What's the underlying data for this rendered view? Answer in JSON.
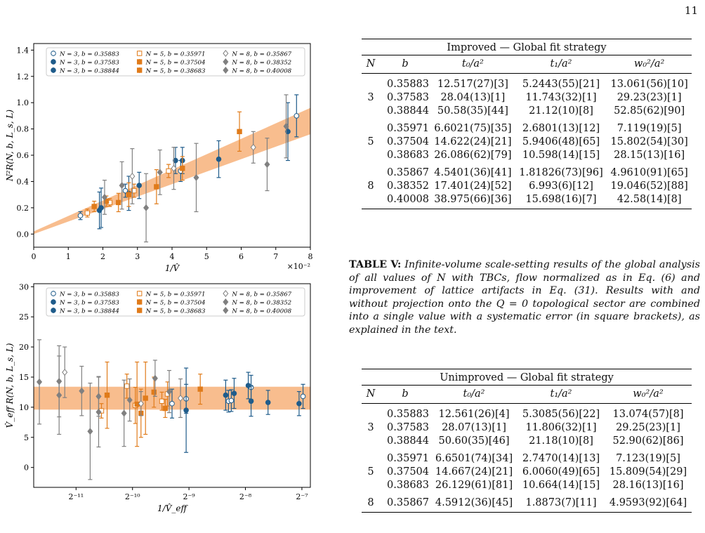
{
  "page_number": "11",
  "plot_colors": {
    "n3": "#1f5c8b",
    "n5": "#e07b1a",
    "n8": "#808080",
    "band": "#f7b27a"
  },
  "legend": [
    {
      "label": "N = 3, b = 0.35883",
      "group": "n3",
      "marker": "o",
      "filled": false
    },
    {
      "label": "N = 5, b = 0.35971",
      "group": "n5",
      "marker": "s",
      "filled": false
    },
    {
      "label": "N = 8, b = 0.35867",
      "group": "n8",
      "marker": "d",
      "filled": false
    },
    {
      "label": "N = 3, b = 0.37583",
      "group": "n3",
      "marker": "o",
      "filled": true
    },
    {
      "label": "N = 5, b = 0.37504",
      "group": "n5",
      "marker": "s",
      "filled": true
    },
    {
      "label": "N = 8, b = 0.38352",
      "group": "n8",
      "marker": "d",
      "filled": true
    },
    {
      "label": "N = 3, b = 0.38844",
      "group": "n3",
      "marker": "o",
      "filled": true
    },
    {
      "label": "N = 5, b = 0.38683",
      "group": "n5",
      "marker": "s",
      "filled": true
    },
    {
      "label": "N = 8, b = 0.40008",
      "group": "n8",
      "marker": "d",
      "filled": true
    }
  ],
  "chart_data": [
    {
      "type": "scatter",
      "xlabel": "1/V̂",
      "ylabel": "N²R(N, b, L_s, L)",
      "x_multiplier": "×10⁻²",
      "xlim": [
        0,
        8
      ],
      "ylim": [
        -0.1,
        1.45
      ],
      "xticks": [
        "0",
        "1",
        "2",
        "3",
        "4",
        "5",
        "6",
        "7",
        "8"
      ],
      "yticks": [
        "0.0",
        "0.2",
        "0.4",
        "0.6",
        "0.8",
        "1.0",
        "1.2",
        "1.4"
      ],
      "band": {
        "x": [
          0,
          8
        ],
        "lower": [
          0.0,
          0.76
        ],
        "upper": [
          0.02,
          0.96
        ]
      },
      "points": [
        {
          "g": "n3",
          "f": false,
          "x": 1.35,
          "y": 0.14,
          "e": 0.03
        },
        {
          "g": "n3",
          "f": false,
          "x": 2.65,
          "y": 0.33,
          "e": 0.05
        },
        {
          "g": "n3",
          "f": false,
          "x": 4.25,
          "y": 0.48,
          "e": 0.08
        },
        {
          "g": "n3",
          "f": false,
          "x": 7.6,
          "y": 0.9,
          "e": 0.16
        },
        {
          "g": "n3",
          "f": true,
          "x": 1.95,
          "y": 0.2,
          "e": 0.15
        },
        {
          "g": "n3",
          "f": true,
          "x": 3.05,
          "y": 0.37,
          "e": 0.1
        },
        {
          "g": "n3",
          "f": true,
          "x": 4.1,
          "y": 0.56,
          "e": 0.1
        },
        {
          "g": "n3",
          "f": true,
          "x": 7.35,
          "y": 0.78,
          "e": 0.22
        },
        {
          "g": "n3",
          "f": true,
          "x": 1.9,
          "y": 0.18,
          "e": 0.14
        },
        {
          "g": "n3",
          "f": true,
          "x": 2.75,
          "y": 0.31,
          "e": 0.13
        },
        {
          "g": "n3",
          "f": true,
          "x": 4.3,
          "y": 0.56,
          "e": 0.1
        },
        {
          "g": "n3",
          "f": true,
          "x": 5.35,
          "y": 0.57,
          "e": 0.14
        },
        {
          "g": "n5",
          "f": false,
          "x": 1.55,
          "y": 0.16,
          "e": 0.03
        },
        {
          "g": "n5",
          "f": false,
          "x": 2.2,
          "y": 0.24,
          "e": 0.03
        },
        {
          "g": "n5",
          "f": false,
          "x": 2.9,
          "y": 0.33,
          "e": 0.05
        },
        {
          "g": "n5",
          "f": false,
          "x": 3.9,
          "y": 0.48,
          "e": 0.05
        },
        {
          "g": "n5",
          "f": true,
          "x": 1.75,
          "y": 0.21,
          "e": 0.04
        },
        {
          "g": "n5",
          "f": true,
          "x": 2.45,
          "y": 0.24,
          "e": 0.07
        },
        {
          "g": "n5",
          "f": true,
          "x": 3.55,
          "y": 0.36,
          "e": 0.13
        },
        {
          "g": "n5",
          "f": true,
          "x": 5.95,
          "y": 0.78,
          "e": 0.15
        },
        {
          "g": "n5",
          "f": true,
          "x": 2.1,
          "y": 0.25,
          "e": 0.04
        },
        {
          "g": "n5",
          "f": true,
          "x": 2.75,
          "y": 0.3,
          "e": 0.09
        },
        {
          "g": "n5",
          "f": true,
          "x": 4.3,
          "y": 0.5,
          "e": 0.09
        },
        {
          "g": "n8",
          "f": false,
          "x": 2.85,
          "y": 0.44,
          "e": 0.21
        },
        {
          "g": "n8",
          "f": false,
          "x": 4.05,
          "y": 0.5,
          "e": 0.16
        },
        {
          "g": "n8",
          "f": false,
          "x": 6.35,
          "y": 0.66,
          "e": 0.12
        },
        {
          "g": "n8",
          "f": true,
          "x": 2.05,
          "y": 0.28,
          "e": 0.13
        },
        {
          "g": "n8",
          "f": true,
          "x": 3.25,
          "y": 0.2,
          "e": 0.26
        },
        {
          "g": "n8",
          "f": true,
          "x": 4.7,
          "y": 0.43,
          "e": 0.26
        },
        {
          "g": "n8",
          "f": true,
          "x": 6.75,
          "y": 0.53,
          "e": 0.2
        },
        {
          "g": "n8",
          "f": true,
          "x": 2.55,
          "y": 0.37,
          "e": 0.18
        },
        {
          "g": "n8",
          "f": true,
          "x": 3.65,
          "y": 0.47,
          "e": 0.17
        },
        {
          "g": "n8",
          "f": true,
          "x": 7.3,
          "y": 0.82,
          "e": 0.24
        }
      ]
    },
    {
      "type": "scatter",
      "xlabel": "1/V̂_eff",
      "ylabel": "V̂_eff R(N, b, L_s, L)",
      "x_scale": "log2",
      "xlim": [
        -11.75,
        -6.85
      ],
      "ylim": [
        -3.3,
        30.5
      ],
      "xticks": [
        {
          "v": -11,
          "label": "2⁻¹¹"
        },
        {
          "v": -10,
          "label": "2⁻¹⁰"
        },
        {
          "v": -9,
          "label": "2⁻⁹"
        },
        {
          "v": -8,
          "label": "2⁻⁸"
        },
        {
          "v": -7,
          "label": "2⁻⁷"
        }
      ],
      "yticks": [
        "0",
        "5",
        "10",
        "15",
        "20",
        "25",
        "30"
      ],
      "band": {
        "lower": 9.6,
        "upper": 13.4
      },
      "points": [
        {
          "g": "n3",
          "f": false,
          "x": -9.3,
          "y": 10.6,
          "e": 2.4
        },
        {
          "g": "n3",
          "f": false,
          "x": -9.05,
          "y": 11.4,
          "e": 2.4
        },
        {
          "g": "n3",
          "f": false,
          "x": -8.3,
          "y": 11.0,
          "e": 1.8
        },
        {
          "g": "n3",
          "f": false,
          "x": -8.25,
          "y": 11.1,
          "e": 1.8
        },
        {
          "g": "n3",
          "f": false,
          "x": -7.9,
          "y": 13.3,
          "e": 2.0
        },
        {
          "g": "n3",
          "f": false,
          "x": -6.98,
          "y": 11.8,
          "e": 2.0
        },
        {
          "g": "n3",
          "f": true,
          "x": -9.05,
          "y": 9.5,
          "e": 7.0
        },
        {
          "g": "n3",
          "f": true,
          "x": -8.35,
          "y": 12.0,
          "e": 2.5
        },
        {
          "g": "n3",
          "f": true,
          "x": -8.2,
          "y": 12.3,
          "e": 2.5
        },
        {
          "g": "n3",
          "f": true,
          "x": -7.9,
          "y": 11.0,
          "e": 2.5
        },
        {
          "g": "n3",
          "f": true,
          "x": -7.95,
          "y": 13.6,
          "e": 2.2
        },
        {
          "g": "n3",
          "f": true,
          "x": -7.6,
          "y": 10.8,
          "e": 2.0
        },
        {
          "g": "n3",
          "f": true,
          "x": -7.05,
          "y": 10.6,
          "e": 2.0
        },
        {
          "g": "n5",
          "f": false,
          "x": -10.55,
          "y": 9.4,
          "e": 1.2
        },
        {
          "g": "n5",
          "f": false,
          "x": -10.1,
          "y": 13.5,
          "e": 2.0
        },
        {
          "g": "n5",
          "f": false,
          "x": -9.95,
          "y": 10.3,
          "e": 3.0
        },
        {
          "g": "n5",
          "f": false,
          "x": -9.48,
          "y": 11.0,
          "e": 1.5
        },
        {
          "g": "n5",
          "f": false,
          "x": -9.38,
          "y": 12.2,
          "e": 2.0
        },
        {
          "g": "n5",
          "f": true,
          "x": -10.45,
          "y": 12.0,
          "e": 5.5
        },
        {
          "g": "n5",
          "f": true,
          "x": -9.92,
          "y": 10.5,
          "e": 7.0
        },
        {
          "g": "n5",
          "f": true,
          "x": -9.77,
          "y": 11.5,
          "e": 6.0
        },
        {
          "g": "n5",
          "f": true,
          "x": -9.85,
          "y": 9.0,
          "e": 4.0
        },
        {
          "g": "n5",
          "f": true,
          "x": -9.62,
          "y": 12.5,
          "e": 2.5
        },
        {
          "g": "n5",
          "f": true,
          "x": -9.42,
          "y": 9.8,
          "e": 1.5
        },
        {
          "g": "n5",
          "f": true,
          "x": -8.8,
          "y": 13.0,
          "e": 2.5
        },
        {
          "g": "n8",
          "f": false,
          "x": -11.2,
          "y": 15.8,
          "e": 4.2
        },
        {
          "g": "n8",
          "f": false,
          "x": -9.85,
          "y": 10.6,
          "e": 2.0
        },
        {
          "g": "n8",
          "f": false,
          "x": -9.15,
          "y": 11.5,
          "e": 3.2
        },
        {
          "g": "n8",
          "f": true,
          "x": -11.65,
          "y": 14.2,
          "e": 7.0
        },
        {
          "g": "n8",
          "f": true,
          "x": -11.3,
          "y": 14.3,
          "e": 5.9
        },
        {
          "g": "n8",
          "f": true,
          "x": -11.3,
          "y": 12.0,
          "e": 6.5
        },
        {
          "g": "n8",
          "f": true,
          "x": -10.9,
          "y": 12.7,
          "e": 4.1
        },
        {
          "g": "n8",
          "f": true,
          "x": -10.75,
          "y": 6.0,
          "e": 8.0
        },
        {
          "g": "n8",
          "f": true,
          "x": -10.6,
          "y": 11.8,
          "e": 3.3
        },
        {
          "g": "n8",
          "f": true,
          "x": -10.15,
          "y": 9.0,
          "e": 5.5
        },
        {
          "g": "n8",
          "f": true,
          "x": -10.05,
          "y": 11.2,
          "e": 3.5
        },
        {
          "g": "n8",
          "f": true,
          "x": -9.6,
          "y": 14.8,
          "e": 3.0
        },
        {
          "g": "n8",
          "f": true,
          "x": -9.35,
          "y": 12.6,
          "e": 3.5
        },
        {
          "g": "n8",
          "f": true,
          "x": -10.6,
          "y": 9.2,
          "e": 5.8
        }
      ]
    }
  ],
  "tables": [
    {
      "title": "Improved — Global fit strategy",
      "headers": [
        "N",
        "b",
        "t₀/a²",
        "t₁/a²",
        "w₀²/a²"
      ],
      "groups": [
        {
          "N": "3",
          "rows": [
            [
              "0.35883",
              "12.517(27)[3]",
              "5.2443(55)[21]",
              "13.061(56)[10]"
            ],
            [
              "0.37583",
              "28.04(13)[1]",
              "11.743(32)[1]",
              "29.23(23)[1]"
            ],
            [
              "0.38844",
              "50.58(35)[44]",
              "21.12(10)[8]",
              "52.85(62)[90]"
            ]
          ]
        },
        {
          "N": "5",
          "rows": [
            [
              "0.35971",
              "6.6021(75)[35]",
              "2.6801(13)[12]",
              "7.119(19)[5]"
            ],
            [
              "0.37504",
              "14.622(24)[21]",
              "5.9406(48)[65]",
              "15.802(54)[30]"
            ],
            [
              "0.38683",
              "26.086(62)[79]",
              "10.598(14)[15]",
              "28.15(13)[16]"
            ]
          ]
        },
        {
          "N": "8",
          "rows": [
            [
              "0.35867",
              "4.5401(36)[41]",
              "1.81826(73)[96]",
              "4.9610(91)[65]"
            ],
            [
              "0.38352",
              "17.401(24)[52]",
              "6.993(6)[12]",
              "19.046(52)[88]"
            ],
            [
              "0.40008",
              "38.975(66)[36]",
              "15.698(16)[7]",
              "42.58(14)[8]"
            ]
          ]
        }
      ]
    },
    {
      "title": "Unimproved — Global fit strategy",
      "headers": [
        "N",
        "b",
        "t₀/a²",
        "t₁/a²",
        "w₀²/a²"
      ],
      "groups": [
        {
          "N": "3",
          "rows": [
            [
              "0.35883",
              "12.561(26)[4]",
              "5.3085(56)[22]",
              "13.074(57)[8]"
            ],
            [
              "0.37583",
              "28.07(13)[1]",
              "11.806(32)[1]",
              "29.25(23)[1]"
            ],
            [
              "0.38844",
              "50.60(35)[46]",
              "21.18(10)[8]",
              "52.90(62)[86]"
            ]
          ]
        },
        {
          "N": "5",
          "rows": [
            [
              "0.35971",
              "6.6501(74)[34]",
              "2.7470(14)[13]",
              "7.123(19)[5]"
            ],
            [
              "0.37504",
              "14.667(24)[21]",
              "6.0060(49)[65]",
              "15.809(54)[29]"
            ],
            [
              "0.38683",
              "26.129(61)[81]",
              "10.664(14)[15]",
              "28.16(13)[16]"
            ]
          ]
        },
        {
          "N": "8",
          "rows": [
            [
              "0.35867",
              "4.5912(36)[45]",
              "1.8873(7)[11]",
              "4.9593(92)[64]"
            ]
          ]
        }
      ]
    }
  ],
  "caption": {
    "label": "TABLE V:",
    "text": "Infinite-volume scale-setting results of the global analysis of all values of N with TBCs, flow normalized as in Eq. (6) and improvement of lattice artifacts in Eq. (31). Results with and without projection onto the Q = 0 topological sector are combined into a single value with a systematic error (in square brackets), as explained in the text."
  }
}
